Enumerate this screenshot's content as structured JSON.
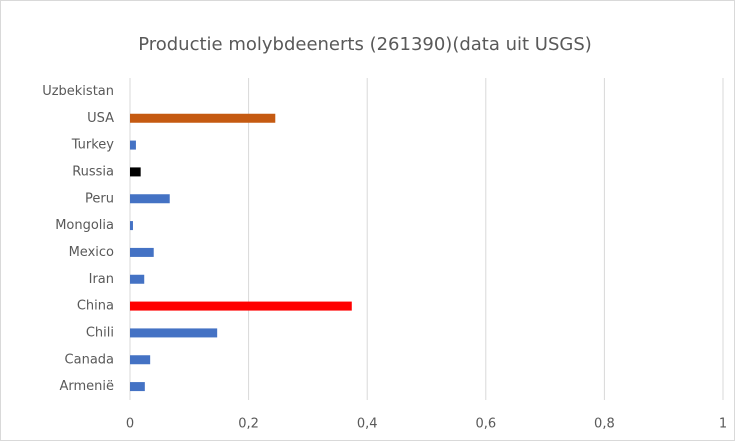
{
  "chart_data": {
    "type": "barh",
    "title": "Productie molybdeenerts  (261390)(data uit USGS)",
    "categories": [
      "Uzbekistan",
      "USA",
      "Turkey",
      "Russia",
      "Peru",
      "Mongolia",
      "Mexico",
      "Iran",
      "China",
      "Chili",
      "Canada",
      "Armenië"
    ],
    "values": [
      0,
      0.245,
      0.01,
      0.018,
      0.067,
      0.005,
      0.04,
      0.024,
      0.374,
      0.147,
      0.034,
      0.025
    ],
    "colors": [
      "#4472c4",
      "#c55a11",
      "#4472c4",
      "#000000",
      "#4472c4",
      "#4472c4",
      "#4472c4",
      "#4472c4",
      "#ff0000",
      "#4472c4",
      "#4472c4",
      "#4472c4"
    ],
    "xlim": [
      0,
      1
    ],
    "xticks": [
      0,
      {
        "value": 0.2,
        "label": "0,2"
      },
      {
        "value": 0.4,
        "label": "0,4"
      },
      {
        "value": 0.6,
        "label": "0,6"
      },
      {
        "value": 0.8,
        "label": "0,8"
      },
      1
    ],
    "grid": true
  }
}
